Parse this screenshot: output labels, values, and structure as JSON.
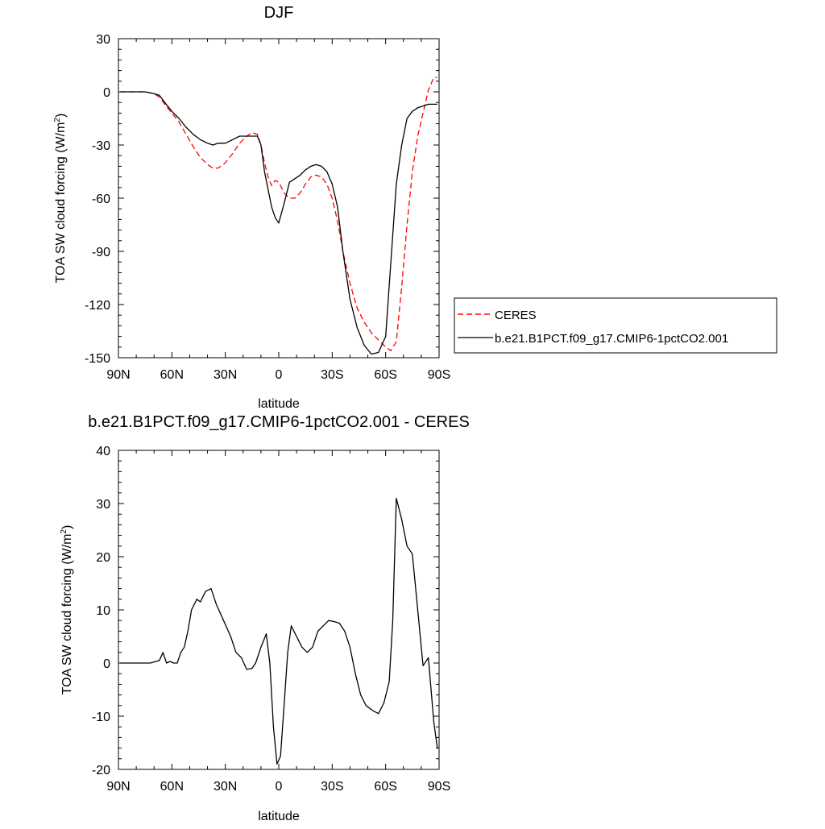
{
  "chart_data": [
    {
      "type": "line",
      "title": "DJF",
      "xlabel": "latitude",
      "ylabel": "TOA SW cloud forcing (W/m²)",
      "ylabel_main": "TOA SW cloud forcing (W/m",
      "ylabel_sup": "2",
      "ylabel_end": ")",
      "xlim": [
        90,
        -90
      ],
      "ylim": [
        -150,
        30
      ],
      "xticks": [
        90,
        60,
        30,
        0,
        -30,
        -60,
        -90
      ],
      "xticklabels": [
        "90N",
        "60N",
        "30N",
        "0",
        "30S",
        "60S",
        "90S"
      ],
      "yticks": [
        -150,
        -120,
        -90,
        -60,
        -30,
        0,
        30
      ],
      "yticklabels": [
        "-150",
        "-120",
        "-90",
        "-60",
        "-30",
        "0",
        "30"
      ],
      "legend": "right",
      "series": [
        {
          "name": "CERES",
          "color": "#ff0000",
          "dash": true,
          "x": [
            89,
            85,
            80,
            75,
            70,
            67,
            64,
            60,
            56,
            52,
            48,
            44,
            40,
            37,
            34,
            30,
            26,
            22,
            18,
            15,
            12,
            10,
            8,
            6,
            4,
            2,
            0,
            -3,
            -6,
            -9,
            -12,
            -15,
            -18,
            -21,
            -24,
            -27,
            -30,
            -33,
            -36,
            -40,
            -44,
            -48,
            -52,
            -56,
            -60,
            -63,
            -66,
            -69,
            -72,
            -75,
            -78,
            -81,
            -84,
            -87,
            -89
          ],
          "y": [
            0,
            0,
            0,
            0,
            -1,
            -3,
            -7,
            -12,
            -17,
            -24,
            -31,
            -37,
            -41,
            -43,
            -43,
            -40,
            -35,
            -29,
            -25,
            -23,
            -24,
            -30,
            -40,
            -48,
            -53,
            -50,
            -51,
            -57,
            -60,
            -60,
            -57,
            -52,
            -48,
            -47,
            -48,
            -52,
            -60,
            -73,
            -90,
            -108,
            -122,
            -130,
            -136,
            -140,
            -144,
            -146,
            -141,
            -110,
            -75,
            -45,
            -25,
            -12,
            1,
            8,
            8
          ]
        },
        {
          "name": "b.e21.B1PCT.f09_g17.CMIP6-1pctCO2.001",
          "color": "#000000",
          "dash": false,
          "x": [
            89,
            85,
            80,
            75,
            70,
            67,
            64,
            60,
            56,
            52,
            48,
            44,
            40,
            37,
            34,
            30,
            26,
            22,
            18,
            15,
            12,
            10,
            8,
            6,
            4,
            2,
            0,
            -3,
            -6,
            -9,
            -12,
            -15,
            -18,
            -21,
            -24,
            -27,
            -30,
            -33,
            -36,
            -40,
            -44,
            -48,
            -52,
            -56,
            -60,
            -63,
            -66,
            -69,
            -72,
            -75,
            -78,
            -81,
            -84,
            -87,
            -89
          ],
          "y": [
            0,
            0,
            0,
            0,
            -1,
            -2,
            -6,
            -11,
            -15,
            -20,
            -24,
            -27,
            -29,
            -30,
            -29,
            -29,
            -27,
            -25,
            -25,
            -25,
            -25,
            -30,
            -45,
            -55,
            -65,
            -71,
            -74,
            -63,
            -51,
            -49,
            -47,
            -44,
            -42,
            -41,
            -42,
            -45,
            -52,
            -65,
            -90,
            -117,
            -133,
            -143,
            -148,
            -147,
            -138,
            -95,
            -52,
            -30,
            -15,
            -11,
            -9,
            -8,
            -7,
            -7,
            -7
          ]
        }
      ]
    },
    {
      "type": "line",
      "title": "b.e21.B1PCT.f09_g17.CMIP6-1pctCO2.001 - CERES",
      "xlabel": "latitude",
      "ylabel": "TOA SW cloud forcing (W/m²)",
      "ylabel_main": "TOA SW cloud forcing (W/m",
      "ylabel_sup": "2",
      "ylabel_end": ")",
      "xlim": [
        90,
        -90
      ],
      "ylim": [
        -20,
        40
      ],
      "xticks": [
        90,
        60,
        30,
        0,
        -30,
        -60,
        -90
      ],
      "xticklabels": [
        "90N",
        "60N",
        "30N",
        "0",
        "30S",
        "60S",
        "90S"
      ],
      "yticks": [
        -20,
        -10,
        0,
        10,
        20,
        30,
        40
      ],
      "yticklabels": [
        "-20",
        "-10",
        "0",
        "10",
        "20",
        "30",
        "40"
      ],
      "series": [
        {
          "color": "#000000",
          "x": [
            89,
            85,
            80,
            75,
            72,
            69,
            67,
            65,
            63,
            61,
            59,
            57,
            55,
            53,
            51,
            49,
            46,
            44,
            41,
            38,
            35,
            31,
            27,
            24,
            21,
            18,
            15,
            13,
            10,
            7,
            5,
            3,
            1,
            -1,
            -3,
            -5,
            -7,
            -10,
            -13,
            -16,
            -19,
            -22,
            -25,
            -28,
            -31,
            -34,
            -37,
            -40,
            -43,
            -46,
            -49,
            -53,
            -56,
            -59,
            -62,
            -64,
            -66,
            -69,
            -72,
            -75,
            -78,
            -81,
            -84,
            -87,
            -89
          ],
          "y": [
            0,
            0,
            0,
            0,
            0,
            0.3,
            0.5,
            2,
            0,
            0.3,
            0,
            0,
            2,
            3,
            6,
            10,
            12,
            11.5,
            13.5,
            14,
            11,
            8,
            5,
            2,
            1,
            -1.2,
            -1,
            0,
            3,
            5.5,
            0,
            -12,
            -19,
            -17.5,
            -8,
            2,
            7,
            5,
            3,
            2,
            3,
            6,
            7,
            8,
            7.8,
            7.5,
            6,
            3,
            -2,
            -6,
            -8,
            -9,
            -9.5,
            -7.5,
            -3.5,
            8,
            31,
            27,
            22,
            20.5,
            10,
            -0.5,
            1,
            -11,
            -16
          ]
        }
      ]
    }
  ]
}
